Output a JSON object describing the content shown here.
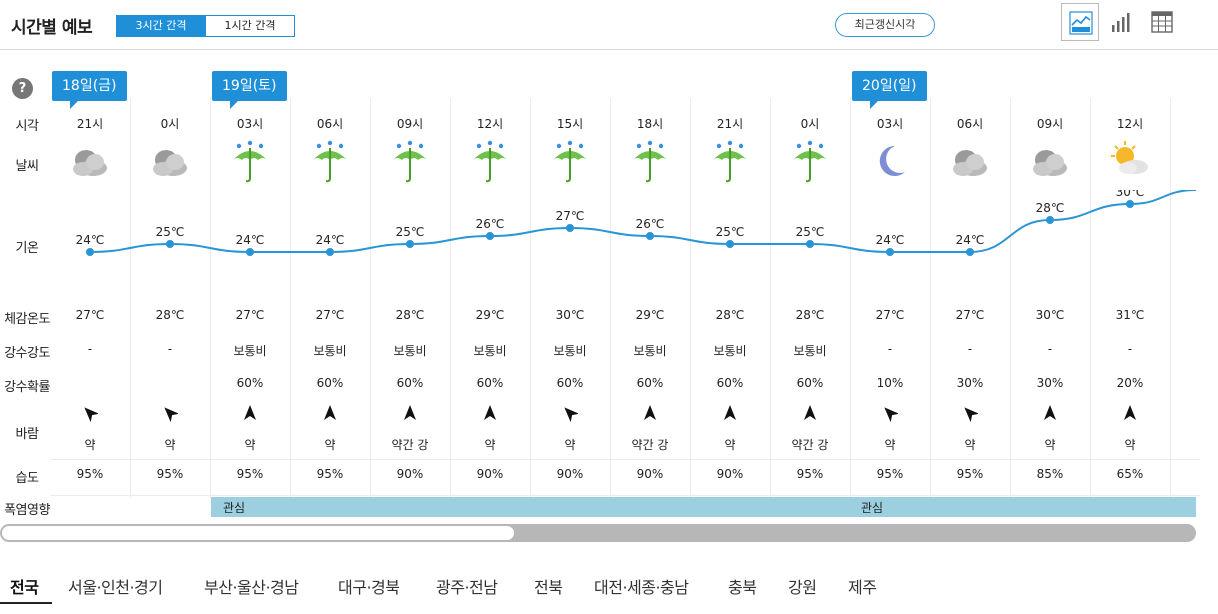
{
  "header": {
    "title": "시간별 예보",
    "interval_3h": "3시간 간격",
    "interval_1h": "1시간 간격",
    "recent_update": "최근갱신시각"
  },
  "labels": {
    "time": "시각",
    "weather": "날씨",
    "temp": "기온",
    "feels": "체감온도",
    "precip_intensity": "강수강도",
    "precip_prob": "강수확률",
    "wind": "바람",
    "humidity": "습도",
    "heat": "폭염영향",
    "help": "?"
  },
  "dates": [
    {
      "label": "18일(금)",
      "col": 0
    },
    {
      "label": "19일(토)",
      "col": 2
    },
    {
      "label": "20일(일)",
      "col": 10
    }
  ],
  "columns": [
    {
      "time": "21시",
      "weather": "cloudy-icon",
      "temp": 24,
      "temp_label": "24℃",
      "feels": "27℃",
      "intensity": "-",
      "prob": "",
      "wind_dir": 315,
      "wind": "약",
      "humidity": "95%"
    },
    {
      "time": "0시",
      "weather": "cloudy-icon",
      "temp": 25,
      "temp_label": "25℃",
      "feels": "28℃",
      "intensity": "-",
      "prob": "",
      "wind_dir": 315,
      "wind": "약",
      "humidity": "95%"
    },
    {
      "time": "03시",
      "weather": "umbrella-rain-icon",
      "temp": 24,
      "temp_label": "24℃",
      "feels": "27℃",
      "intensity": "보통비",
      "prob": "60%",
      "wind_dir": 0,
      "wind": "약",
      "humidity": "95%"
    },
    {
      "time": "06시",
      "weather": "umbrella-rain-icon",
      "temp": 24,
      "temp_label": "24℃",
      "feels": "27℃",
      "intensity": "보통비",
      "prob": "60%",
      "wind_dir": 0,
      "wind": "약",
      "humidity": "95%"
    },
    {
      "time": "09시",
      "weather": "umbrella-rain-icon",
      "temp": 25,
      "temp_label": "25℃",
      "feels": "28℃",
      "intensity": "보통비",
      "prob": "60%",
      "wind_dir": 0,
      "wind": "약간 강",
      "humidity": "90%"
    },
    {
      "time": "12시",
      "weather": "umbrella-rain-icon",
      "temp": 26,
      "temp_label": "26℃",
      "feels": "29℃",
      "intensity": "보통비",
      "prob": "60%",
      "wind_dir": 0,
      "wind": "약",
      "humidity": "90%"
    },
    {
      "time": "15시",
      "weather": "umbrella-rain-icon",
      "temp": 27,
      "temp_label": "27℃",
      "feels": "30℃",
      "intensity": "보통비",
      "prob": "60%",
      "wind_dir": 315,
      "wind": "약",
      "humidity": "90%"
    },
    {
      "time": "18시",
      "weather": "umbrella-rain-icon",
      "temp": 26,
      "temp_label": "26℃",
      "feels": "29℃",
      "intensity": "보통비",
      "prob": "60%",
      "wind_dir": 0,
      "wind": "약간 강",
      "humidity": "90%"
    },
    {
      "time": "21시",
      "weather": "umbrella-rain-icon",
      "temp": 25,
      "temp_label": "25℃",
      "feels": "28℃",
      "intensity": "보통비",
      "prob": "60%",
      "wind_dir": 0,
      "wind": "약",
      "humidity": "90%"
    },
    {
      "time": "0시",
      "weather": "umbrella-rain-icon",
      "temp": 25,
      "temp_label": "25℃",
      "feels": "28℃",
      "intensity": "보통비",
      "prob": "60%",
      "wind_dir": 0,
      "wind": "약간 강",
      "humidity": "95%"
    },
    {
      "time": "03시",
      "weather": "moon-icon",
      "temp": 24,
      "temp_label": "24℃",
      "feels": "27℃",
      "intensity": "-",
      "prob": "10%",
      "wind_dir": 315,
      "wind": "약",
      "humidity": "95%"
    },
    {
      "time": "06시",
      "weather": "cloudy-icon",
      "temp": 24,
      "temp_label": "24℃",
      "feels": "27℃",
      "intensity": "-",
      "prob": "30%",
      "wind_dir": 315,
      "wind": "약",
      "humidity": "95%"
    },
    {
      "time": "09시",
      "weather": "cloudy-icon",
      "temp": 28,
      "temp_label": "28℃",
      "feels": "30℃",
      "intensity": "-",
      "prob": "30%",
      "wind_dir": 0,
      "wind": "약",
      "humidity": "85%"
    },
    {
      "time": "12시",
      "weather": "sun-cloud-icon",
      "temp": 30,
      "temp_label": "30℃",
      "feels": "31℃",
      "intensity": "-",
      "prob": "20%",
      "wind_dir": 0,
      "wind": "약",
      "humidity": "65%"
    }
  ],
  "heat": {
    "label_1": "관심",
    "label_2": "관심"
  },
  "scroll": {
    "position_fraction": 0.43
  },
  "regions": [
    "전국",
    "서울·인천·경기",
    "부산·울산·경남",
    "대구·경북",
    "광주·전남",
    "전북",
    "대전·세종·충남",
    "충북",
    "강원",
    "제주"
  ],
  "colors": {
    "accent": "#1f8fd8",
    "line": "#2a94d6",
    "heat": "#9ccfe0"
  }
}
